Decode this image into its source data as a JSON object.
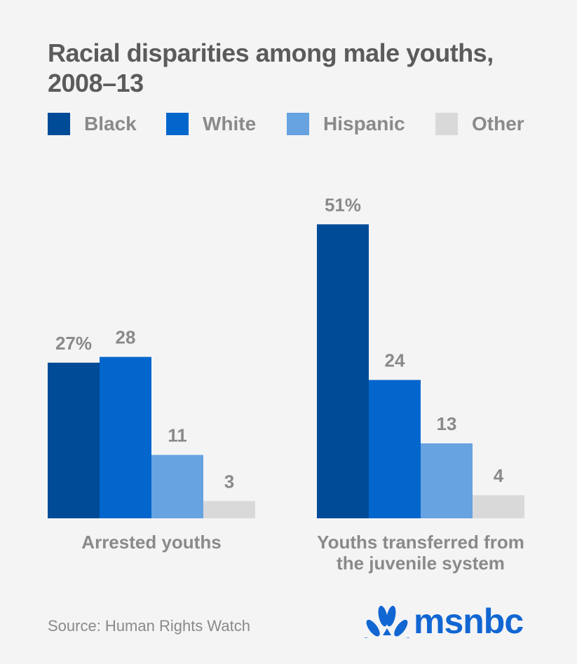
{
  "title": "Racial disparities among male youths, 2008–13",
  "source": "Source: Human Rights Watch",
  "logo": {
    "text": "msnbc",
    "icon": "peacock-icon"
  },
  "colors": {
    "Black": "#004b98",
    "White": "#0266cc",
    "Hispanic": "#66a3e0",
    "Other": "#d9d9d9",
    "text": "#8a8a8a",
    "title": "#5b5b5b",
    "logo": "#1166d2"
  },
  "legend": [
    "Black",
    "White",
    "Hispanic",
    "Other"
  ],
  "chart_data": {
    "type": "bar",
    "title": "Racial disparities among male youths, 2008–13",
    "categories": [
      "Arrested youths",
      "Youths transferred from the juvenile system"
    ],
    "category_lines": [
      [
        "Arrested youths"
      ],
      [
        "Youths transferred from",
        "the juvenile system"
      ]
    ],
    "series": [
      {
        "name": "Black",
        "values": [
          27,
          51
        ],
        "labels": [
          "27%",
          "51%"
        ]
      },
      {
        "name": "White",
        "values": [
          28,
          24
        ],
        "labels": [
          "28",
          "24"
        ]
      },
      {
        "name": "Hispanic",
        "values": [
          11,
          13
        ],
        "labels": [
          "11",
          "13"
        ]
      },
      {
        "name": "Other",
        "values": [
          3,
          4
        ],
        "labels": [
          "3",
          "4"
        ]
      }
    ],
    "ylim": [
      0,
      60
    ],
    "xlabel": "",
    "ylabel": "",
    "grid": false,
    "legend_position": "top"
  }
}
